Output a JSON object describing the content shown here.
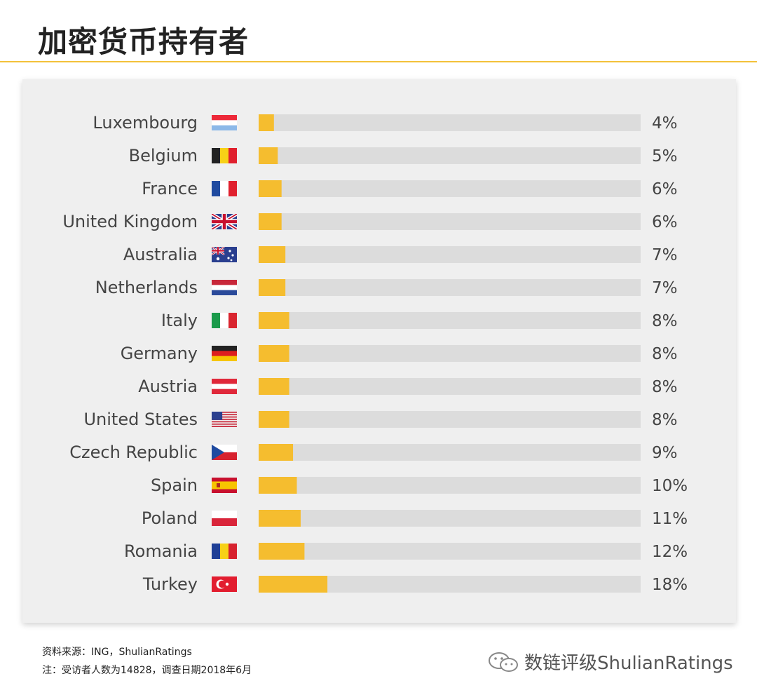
{
  "title": "加密货币持有者",
  "colors": {
    "accent": "#f5bd2f",
    "track": "#dcdcdc",
    "rule": "#f3c23a"
  },
  "chart_data": {
    "type": "bar",
    "orientation": "horizontal",
    "value_unit": "%",
    "xlim": [
      0,
      100
    ],
    "categories": [
      "Luxembourg",
      "Belgium",
      "France",
      "United Kingdom",
      "Australia",
      "Netherlands",
      "Italy",
      "Germany",
      "Austria",
      "United States",
      "Czech Republic",
      "Spain",
      "Poland",
      "Romania",
      "Turkey"
    ],
    "values": [
      4,
      5,
      6,
      6,
      7,
      7,
      8,
      8,
      8,
      8,
      9,
      10,
      11,
      12,
      18
    ],
    "labels": [
      "4%",
      "5%",
      "6%",
      "6%",
      "7%",
      "7%",
      "8%",
      "8%",
      "8%",
      "8%",
      "9%",
      "10%",
      "11%",
      "12%",
      "18%"
    ],
    "flags": [
      "flag-luxembourg-icon",
      "flag-belgium-icon",
      "flag-france-icon",
      "flag-uk-icon",
      "flag-australia-icon",
      "flag-netherlands-icon",
      "flag-italy-icon",
      "flag-germany-icon",
      "flag-austria-icon",
      "flag-usa-icon",
      "flag-czech-icon",
      "flag-spain-icon",
      "flag-poland-icon",
      "flag-romania-icon",
      "flag-turkey-icon"
    ],
    "grid": false,
    "legend": "none"
  },
  "footer": {
    "source": "资料来源：ING，ShulianRatings",
    "note": "注：受访者人数为14828，调查日期2018年6月"
  },
  "watermark": {
    "text": "数链评级ShulianRatings",
    "icon": "wechat-icon"
  }
}
